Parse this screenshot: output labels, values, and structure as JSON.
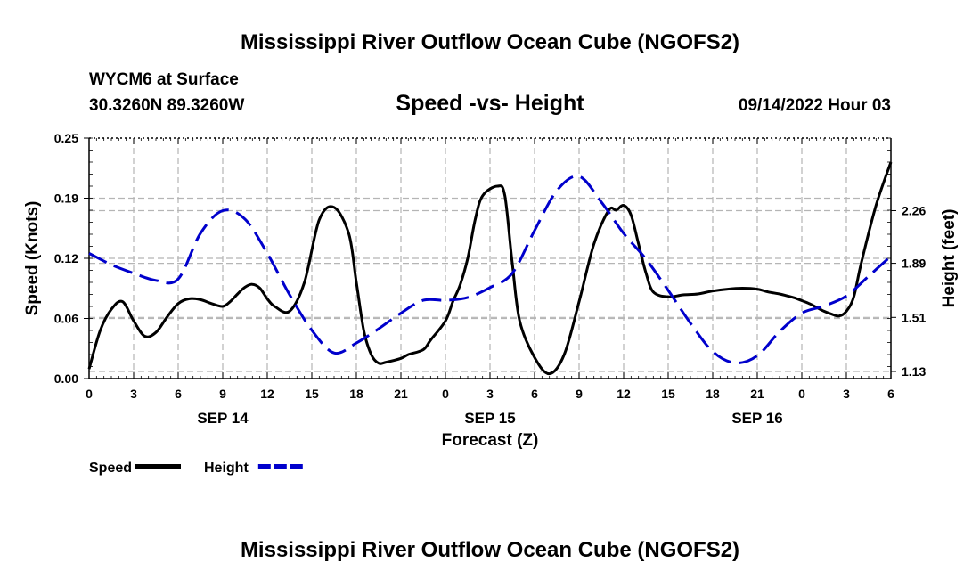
{
  "chart_data": {
    "type": "line",
    "title": "Mississippi River Outflow Ocean Cube (NGOFS2)",
    "footer_title": "Mississippi River Outflow Ocean Cube (NGOFS2)",
    "subtitle": "Speed -vs- Height",
    "station": "WYCM6 at Surface",
    "coords": "30.3260N  89.3260W",
    "run_time": "09/14/2022 Hour 03",
    "xlabel": "Forecast (Z)",
    "ylabel_left": "Speed (Knots)",
    "ylabel_right": "Height (feet)",
    "x_tick_labels": [
      "0",
      "3",
      "6",
      "9",
      "12",
      "15",
      "18",
      "21",
      "0",
      "3",
      "6",
      "9",
      "12",
      "15",
      "18",
      "21",
      "0",
      "3",
      "6"
    ],
    "day_labels": [
      {
        "label": "SEP 14",
        "hour": 18
      },
      {
        "label": "SEP 15",
        "hour": 54
      },
      {
        "label": "SEP 16",
        "hour": 90
      }
    ],
    "xlim": [
      0,
      108
    ],
    "ylim_left": [
      0,
      0.25
    ],
    "left_ticks": [
      "0.00",
      "0.06",
      "0.12",
      "0.19",
      "0.25"
    ],
    "left_tick_values": [
      0.0,
      0.0625,
      0.125,
      0.1875,
      0.25
    ],
    "ylim_right": [
      1.08,
      2.77
    ],
    "right_ticks": [
      "1.13",
      "1.51",
      "1.89",
      "2.26"
    ],
    "right_tick_values": [
      1.13,
      1.51,
      1.89,
      2.26
    ],
    "series": [
      {
        "name": "Speed",
        "axis": "left",
        "color": "#000000",
        "dash": "solid",
        "x": [
          0,
          1.5,
          3,
          4.5,
          6,
          7.5,
          9,
          10.5,
          12,
          13.5,
          15,
          16.5,
          18,
          19,
          20,
          21,
          22,
          23,
          24,
          25,
          27,
          29,
          31,
          33,
          35,
          36,
          37,
          38,
          39,
          40,
          42,
          43,
          45,
          46,
          48,
          49,
          50,
          51,
          52,
          53,
          55,
          56,
          57,
          58,
          60,
          62,
          64,
          66,
          68,
          70,
          71,
          72,
          73,
          74,
          75,
          76,
          78,
          80,
          82,
          84,
          86,
          88,
          90,
          91.5,
          93,
          94,
          95,
          96,
          97,
          98,
          99,
          100,
          101,
          102,
          103,
          104,
          106,
          108
        ],
        "values": [
          0.01,
          0.05,
          0.072,
          0.08,
          0.06,
          0.044,
          0.048,
          0.064,
          0.078,
          0.083,
          0.082,
          0.078,
          0.075,
          0.08,
          0.088,
          0.095,
          0.098,
          0.094,
          0.083,
          0.075,
          0.07,
          0.1,
          0.165,
          0.178,
          0.15,
          0.1,
          0.05,
          0.025,
          0.016,
          0.017,
          0.021,
          0.025,
          0.03,
          0.04,
          0.06,
          0.08,
          0.098,
          0.125,
          0.165,
          0.19,
          0.2,
          0.19,
          0.12,
          0.06,
          0.022,
          0.005,
          0.025,
          0.08,
          0.14,
          0.175,
          0.175,
          0.18,
          0.17,
          0.14,
          0.11,
          0.09,
          0.085,
          0.087,
          0.088,
          0.091,
          0.093,
          0.094,
          0.093,
          0.09,
          0.088,
          0.086,
          0.084,
          0.081,
          0.078,
          0.074,
          0.07,
          0.067,
          0.065,
          0.07,
          0.085,
          0.12,
          0.18,
          0.225
        ]
      },
      {
        "name": "Height",
        "axis": "right",
        "color": "#0000cc",
        "dash": "dashed",
        "x": [
          0,
          3,
          6,
          9,
          12,
          15,
          18,
          21,
          24,
          27,
          30,
          33,
          36,
          39,
          42,
          45,
          48,
          51,
          54,
          57,
          60,
          63,
          66,
          69,
          72,
          75,
          78,
          81,
          84,
          87,
          90,
          93,
          96,
          99,
          102,
          105,
          108
        ],
        "values": [
          1.96,
          1.88,
          1.82,
          1.77,
          1.78,
          2.1,
          2.26,
          2.2,
          1.96,
          1.67,
          1.42,
          1.26,
          1.33,
          1.43,
          1.54,
          1.63,
          1.63,
          1.65,
          1.72,
          1.82,
          2.12,
          2.4,
          2.5,
          2.32,
          2.1,
          1.92,
          1.7,
          1.47,
          1.27,
          1.19,
          1.24,
          1.41,
          1.54,
          1.59,
          1.66,
          1.8,
          1.94
        ]
      }
    ],
    "legend": {
      "placement": "bottom-left",
      "items": [
        {
          "label": "Speed",
          "color": "#000000",
          "dash": "solid"
        },
        {
          "label": "Height",
          "color": "#0000cc",
          "dash": "dashed"
        }
      ]
    },
    "grid": true
  }
}
